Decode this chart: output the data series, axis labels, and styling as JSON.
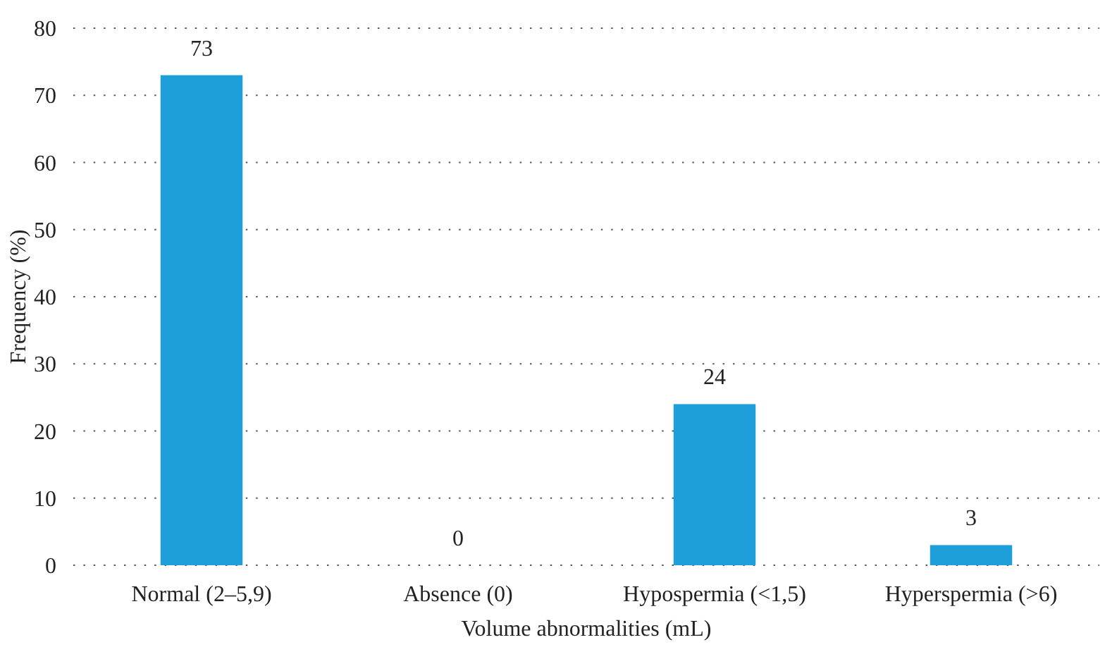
{
  "chart_data": {
    "type": "bar",
    "xlabel": "Volume abnormalities (mL)",
    "ylabel": "Frequency (%)",
    "categories": [
      "Normal (2–5,9)",
      "Absence (0)",
      "Hypospermia (<1,5)",
      "Hyperspermia (>6)"
    ],
    "values": [
      73,
      0,
      24,
      3
    ],
    "color": "#1e9fd9",
    "ylim": [
      0,
      80
    ],
    "yticks": [
      0,
      10,
      20,
      30,
      40,
      50,
      60,
      70,
      80
    ],
    "grid": "y",
    "data_labels": true
  }
}
